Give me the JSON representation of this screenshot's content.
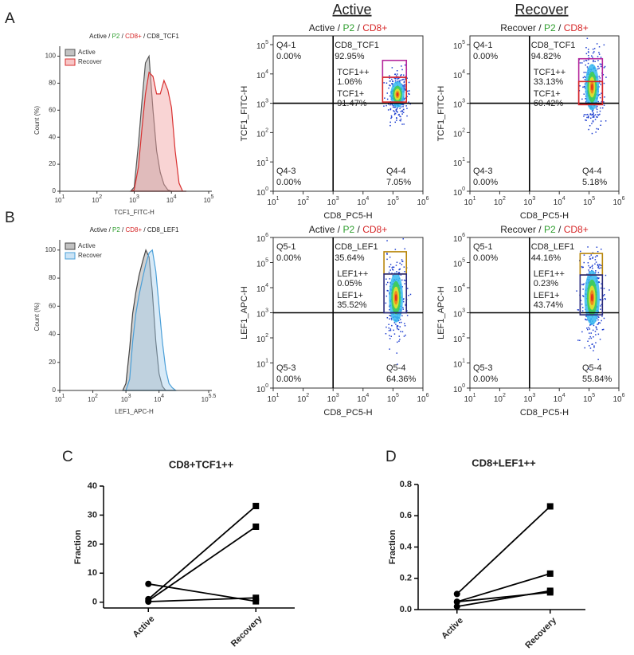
{
  "panel_labels": [
    "A",
    "B",
    "C",
    "D"
  ],
  "column_headers": [
    "Active",
    "Recover"
  ],
  "chart_data": [
    {
      "type": "density",
      "title_parts": [
        "Active",
        " / ",
        "P2",
        " / ",
        "CD8+",
        " / CD8_TCF1"
      ],
      "title_colors": [
        "#222222",
        "#222222",
        "#2e9e2e",
        "#222222",
        "#d62728",
        "#222222"
      ],
      "xlabel": "TCF1_FITC-H",
      "ylabel": "Count  (%)",
      "xlog": true,
      "xlim": [
        10,
        100000
      ],
      "ylim": [
        0,
        105
      ],
      "xticks": [
        {
          "value": 10,
          "label": "10",
          "sup": "1"
        },
        {
          "value": 100,
          "label": "10",
          "sup": "2"
        },
        {
          "value": 1000,
          "label": "10",
          "sup": "3"
        },
        {
          "value": 10000,
          "label": "10",
          "sup": "4"
        },
        {
          "value": 100000,
          "label": "10",
          "sup": "5"
        }
      ],
      "yticks": [
        0,
        20,
        40,
        60,
        80,
        100
      ],
      "legend": "top-left",
      "x": [
        800,
        1000,
        1300,
        1600,
        2000,
        2500,
        3200,
        4000,
        5000,
        6300,
        8000,
        10000,
        12600,
        16000,
        20000,
        25000
      ],
      "series": [
        {
          "name": "Active",
          "color": "#555555",
          "fill": "#9a9a9a",
          "values": [
            0,
            3,
            35,
            65,
            95,
            100,
            60,
            30,
            14,
            5,
            1,
            0,
            0,
            0,
            0,
            0
          ]
        },
        {
          "name": "Recover",
          "color": "#d93030",
          "fill": "#f2a0a0",
          "values": [
            0,
            1,
            18,
            45,
            72,
            88,
            85,
            72,
            72,
            82,
            75,
            62,
            30,
            6,
            0,
            0
          ]
        }
      ]
    },
    {
      "type": "flow",
      "title_parts": [
        "Active",
        " / ",
        "P2",
        " / ",
        "CD8+"
      ],
      "title_colors": [
        "#222222",
        "#222222",
        "#2e9e2e",
        "#222222",
        "#d62728"
      ],
      "xlabel": "CD8_PC5-H",
      "ylabel": "TCF1_FITC-H",
      "xlog": true,
      "ylog": true,
      "xlim": [
        10,
        1000000
      ],
      "ylim": [
        1,
        100000
      ],
      "xticks": [
        {
          "value": 10,
          "label": "10",
          "sup": "1"
        },
        {
          "value": 100,
          "label": "10",
          "sup": "2"
        },
        {
          "value": 1000,
          "label": "10",
          "sup": "3"
        },
        {
          "value": 10000,
          "label": "10",
          "sup": "4"
        },
        {
          "value": 100000,
          "label": "10",
          "sup": "5"
        },
        {
          "value": 1000000,
          "label": "10",
          "sup": "6"
        }
      ],
      "yticks": [
        {
          "value": 1,
          "label": "10",
          "sup": "0"
        },
        {
          "value": 10,
          "label": "10",
          "sup": "1"
        },
        {
          "value": 100,
          "label": "10",
          "sup": "2"
        },
        {
          "value": 1000,
          "label": "10",
          "sup": "3"
        },
        {
          "value": 10000,
          "label": "10",
          "sup": "4"
        },
        {
          "value": 100000,
          "label": "10",
          "sup": "5"
        }
      ],
      "quadrant_x": 1000,
      "quadrant_y": 1000,
      "quadrants": [
        {
          "name": "Q4-1",
          "label": "0.00%",
          "corner": "top-left"
        },
        {
          "name": "Q4-3",
          "label": "0.00%",
          "corner": "bottom-left"
        },
        {
          "name": "Q4-4",
          "label": "7.05%",
          "corner": "bottom-right"
        }
      ],
      "parent_gate": {
        "name": "CD8_TCF1",
        "label": "92.95%"
      },
      "gates": [
        {
          "name": "TCF1++",
          "label": "1.06%",
          "color": "#b5279b",
          "xlim": [
            45000,
            280000
          ],
          "ylim": [
            7700,
            29000
          ]
        },
        {
          "name": "TCF1+",
          "label": "91.47%",
          "color": "#d62728",
          "xlim": [
            45000,
            280000
          ],
          "ylim": [
            1100,
            7700
          ]
        }
      ]
    },
    {
      "type": "flow",
      "title_parts": [
        "Recover",
        " / ",
        "P2",
        " / ",
        "CD8+"
      ],
      "title_colors": [
        "#222222",
        "#222222",
        "#2e9e2e",
        "#222222",
        "#d62728"
      ],
      "xlabel": "CD8_PC5-H",
      "ylabel": "TCF1_FITC-H",
      "xlog": true,
      "ylog": true,
      "xlim": [
        10,
        1000000
      ],
      "ylim": [
        1,
        100000
      ],
      "xticks": [
        {
          "value": 10,
          "label": "10",
          "sup": "1"
        },
        {
          "value": 100,
          "label": "10",
          "sup": "2"
        },
        {
          "value": 1000,
          "label": "10",
          "sup": "3"
        },
        {
          "value": 10000,
          "label": "10",
          "sup": "4"
        },
        {
          "value": 100000,
          "label": "10",
          "sup": "5"
        },
        {
          "value": 1000000,
          "label": "10",
          "sup": "6"
        }
      ],
      "yticks": [
        {
          "value": 1,
          "label": "10",
          "sup": "0"
        },
        {
          "value": 10,
          "label": "10",
          "sup": "1"
        },
        {
          "value": 100,
          "label": "10",
          "sup": "2"
        },
        {
          "value": 1000,
          "label": "10",
          "sup": "3"
        },
        {
          "value": 10000,
          "label": "10",
          "sup": "4"
        },
        {
          "value": 100000,
          "label": "10",
          "sup": "5"
        }
      ],
      "quadrant_x": 1000,
      "quadrant_y": 1000,
      "quadrants": [
        {
          "name": "Q4-1",
          "label": "0.00%",
          "corner": "top-left"
        },
        {
          "name": "Q4-3",
          "label": "0.00%",
          "corner": "bottom-left"
        },
        {
          "name": "Q4-4",
          "label": "5.18%",
          "corner": "bottom-right"
        }
      ],
      "parent_gate": {
        "name": "CD8_TCF1",
        "label": "94.82%"
      },
      "gates": [
        {
          "name": "TCF1++",
          "label": "33.13%",
          "color": "#b5279b",
          "xlim": [
            45000,
            280000
          ],
          "ylim": [
            900,
            33000
          ]
        },
        {
          "name": "TCF1+",
          "label": "60.42%",
          "color": "#d62728",
          "xlim": [
            45000,
            280000
          ],
          "ylim": [
            900,
            5500
          ]
        }
      ]
    },
    {
      "type": "density",
      "title_parts": [
        "Active",
        " / ",
        "P2",
        " / ",
        "CD8+",
        " / CD8_LEF1"
      ],
      "title_colors": [
        "#222222",
        "#222222",
        "#2e9e2e",
        "#222222",
        "#d62728",
        "#222222"
      ],
      "xlabel": "LEF1_APC-H",
      "ylabel": "Count  (%)",
      "xlog": true,
      "xlim": [
        10,
        316228
      ],
      "ylim": [
        0,
        105
      ],
      "xticks": [
        {
          "value": 10,
          "label": "10",
          "sup": "1"
        },
        {
          "value": 100,
          "label": "10",
          "sup": "2"
        },
        {
          "value": 1000,
          "label": "10",
          "sup": "3"
        },
        {
          "value": 10000,
          "label": "10",
          "sup": "4"
        },
        {
          "value": 316228,
          "label": "10",
          "sup": "5.5"
        }
      ],
      "yticks": [
        0,
        20,
        40,
        60,
        80,
        100
      ],
      "legend": "top-left",
      "x": [
        800,
        1000,
        1300,
        1600,
        2000,
        2500,
        3200,
        4000,
        5000,
        6300,
        8000,
        10000,
        12600,
        16000,
        20000,
        25000,
        32000
      ],
      "series": [
        {
          "name": "Active",
          "color": "#444444",
          "fill": "#9a9a9a",
          "values": [
            0,
            5,
            30,
            55,
            70,
            82,
            92,
            100,
            95,
            70,
            35,
            12,
            3,
            0,
            0,
            0,
            0
          ]
        },
        {
          "name": "Recover",
          "color": "#4a9fd8",
          "fill": "#a9d0ee",
          "values": [
            0,
            0,
            8,
            35,
            55,
            68,
            80,
            90,
            98,
            100,
            85,
            60,
            35,
            15,
            5,
            2,
            0
          ]
        }
      ]
    },
    {
      "type": "flow",
      "title_parts": [
        "Active",
        " / ",
        "P2",
        " / ",
        "CD8+"
      ],
      "title_colors": [
        "#222222",
        "#222222",
        "#2e9e2e",
        "#222222",
        "#d62728"
      ],
      "xlabel": "CD8_PC5-H",
      "ylabel": "LEF1_APC-H",
      "xlog": true,
      "ylog": true,
      "xlim": [
        10,
        1000000
      ],
      "ylim": [
        1,
        1000000
      ],
      "xticks": [
        {
          "value": 10,
          "label": "10",
          "sup": "1"
        },
        {
          "value": 100,
          "label": "10",
          "sup": "2"
        },
        {
          "value": 1000,
          "label": "10",
          "sup": "3"
        },
        {
          "value": 10000,
          "label": "10",
          "sup": "4"
        },
        {
          "value": 100000,
          "label": "10",
          "sup": "5"
        },
        {
          "value": 1000000,
          "label": "10",
          "sup": "6"
        }
      ],
      "yticks": [
        {
          "value": 1,
          "label": "10",
          "sup": "0"
        },
        {
          "value": 10,
          "label": "10",
          "sup": "1"
        },
        {
          "value": 100,
          "label": "10",
          "sup": "2"
        },
        {
          "value": 1000,
          "label": "10",
          "sup": "3"
        },
        {
          "value": 10000,
          "label": "10",
          "sup": "4"
        },
        {
          "value": 100000,
          "label": "10",
          "sup": "5"
        },
        {
          "value": 1000000,
          "label": "10",
          "sup": "6"
        }
      ],
      "quadrant_x": 1000,
      "quadrant_y": 1000,
      "quadrants": [
        {
          "name": "Q5-1",
          "label": "0.00%",
          "corner": "top-left"
        },
        {
          "name": "Q5-3",
          "label": "0.00%",
          "corner": "bottom-left"
        },
        {
          "name": "Q5-4",
          "label": "64.36%",
          "corner": "bottom-right"
        }
      ],
      "parent_gate": {
        "name": "CD8_LEF1",
        "label": "35.64%"
      },
      "gates": [
        {
          "name": "LEF1++",
          "label": "0.05%",
          "color": "#b8860b",
          "xlim": [
            50000,
            280000
          ],
          "ylim": [
            35000,
            270000
          ]
        },
        {
          "name": "LEF1+",
          "label": "35.52%",
          "color": "#2a2a7a",
          "xlim": [
            50000,
            280000
          ],
          "ylim": [
            1000,
            35000
          ]
        }
      ]
    },
    {
      "type": "flow",
      "title_parts": [
        "Recover",
        " / ",
        "P2",
        " / ",
        "CD8+"
      ],
      "title_colors": [
        "#222222",
        "#222222",
        "#2e9e2e",
        "#222222",
        "#d62728"
      ],
      "xlabel": "CD8_PC5-H",
      "ylabel": "LEF1_APC-H",
      "xlog": true,
      "ylog": true,
      "xlim": [
        10,
        1000000
      ],
      "ylim": [
        1,
        1000000
      ],
      "xticks": [
        {
          "value": 10,
          "label": "10",
          "sup": "1"
        },
        {
          "value": 100,
          "label": "10",
          "sup": "2"
        },
        {
          "value": 1000,
          "label": "10",
          "sup": "3"
        },
        {
          "value": 10000,
          "label": "10",
          "sup": "4"
        },
        {
          "value": 100000,
          "label": "10",
          "sup": "5"
        },
        {
          "value": 1000000,
          "label": "10",
          "sup": "6"
        }
      ],
      "yticks": [
        {
          "value": 1,
          "label": "10",
          "sup": "0"
        },
        {
          "value": 10,
          "label": "10",
          "sup": "1"
        },
        {
          "value": 100,
          "label": "10",
          "sup": "2"
        },
        {
          "value": 1000,
          "label": "10",
          "sup": "3"
        },
        {
          "value": 10000,
          "label": "10",
          "sup": "4"
        },
        {
          "value": 100000,
          "label": "10",
          "sup": "5"
        },
        {
          "value": 1000000,
          "label": "10",
          "sup": "6"
        }
      ],
      "quadrant_x": 1000,
      "quadrant_y": 1000,
      "quadrants": [
        {
          "name": "Q5-1",
          "label": "0.00%",
          "corner": "top-left"
        },
        {
          "name": "Q5-3",
          "label": "0.00%",
          "corner": "bottom-left"
        },
        {
          "name": "Q5-4",
          "label": "55.84%",
          "corner": "bottom-right"
        }
      ],
      "parent_gate": {
        "name": "CD8_LEF1",
        "label": "44.16%"
      },
      "gates": [
        {
          "name": "LEF1++",
          "label": "0.23%",
          "color": "#b8860b",
          "xlim": [
            50000,
            280000
          ],
          "ylim": [
            32000,
            230000
          ]
        },
        {
          "name": "LEF1+",
          "label": "43.74%",
          "color": "#2a2a7a",
          "xlim": [
            50000,
            280000
          ],
          "ylim": [
            830,
            32000
          ]
        }
      ]
    },
    {
      "type": "line",
      "title": "CD8+TCF1++",
      "ylabel": "Fraction",
      "categories": [
        "Active",
        "Recovery"
      ],
      "markers": [
        "circle",
        "square"
      ],
      "ylim": [
        -2,
        40
      ],
      "yticks": [
        0,
        10,
        20,
        30,
        40
      ],
      "series": [
        {
          "color": "#000000",
          "values": [
            1.06,
            33.13
          ]
        },
        {
          "color": "#000000",
          "values": [
            0.5,
            26
          ]
        },
        {
          "color": "#000000",
          "values": [
            6.3,
            0.3
          ]
        },
        {
          "color": "#000000",
          "values": [
            0.2,
            1.5
          ]
        }
      ]
    },
    {
      "type": "line",
      "title": "CD8+LEF1++",
      "ylabel": "Fraction",
      "categories": [
        "Active",
        "Recovery"
      ],
      "markers": [
        "circle",
        "square"
      ],
      "ylim": [
        0,
        0.8
      ],
      "yticks": [
        {
          "value": 0,
          "label": "0.0"
        },
        0.2,
        0.4,
        0.6,
        0.8
      ],
      "series": [
        {
          "color": "#000000",
          "values": [
            0.1,
            0.66
          ]
        },
        {
          "color": "#000000",
          "values": [
            0.05,
            0.23
          ]
        },
        {
          "color": "#000000",
          "values": [
            0.02,
            0.12
          ]
        },
        {
          "color": "#000000",
          "values": [
            0.05,
            0.11
          ]
        }
      ]
    }
  ]
}
